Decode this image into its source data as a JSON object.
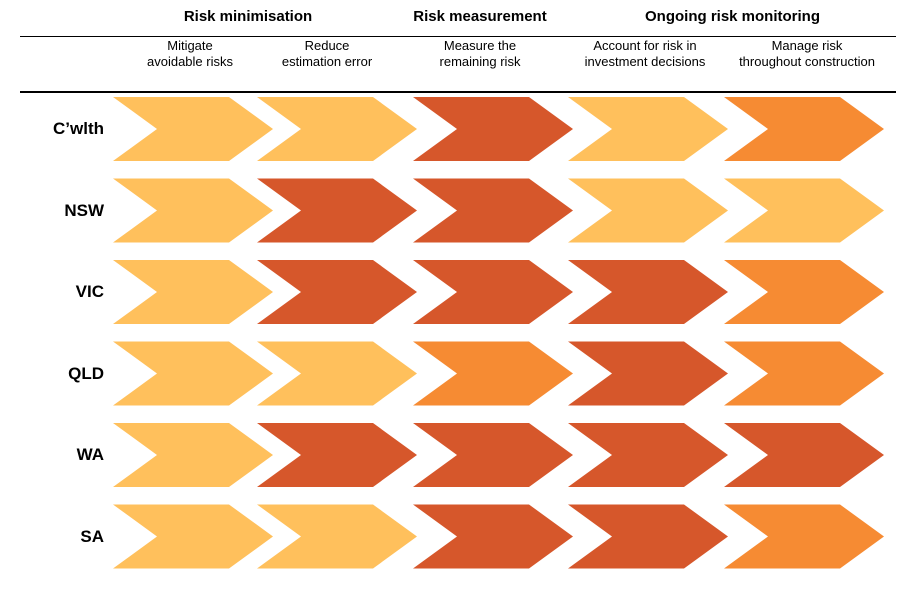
{
  "groups": [
    {
      "title": "Risk minimisation"
    },
    {
      "title": "Risk measurement"
    },
    {
      "title": "Ongoing risk monitoring"
    }
  ],
  "stages": [
    {
      "line1": "Mitigate",
      "line2": "avoidable risks"
    },
    {
      "line1": "Reduce",
      "line2": "estimation error"
    },
    {
      "line1": "Measure the",
      "line2": "remaining risk"
    },
    {
      "line1": "Account for risk in",
      "line2": "investment decisions"
    },
    {
      "line1": "Manage risk",
      "line2": "throughout construction"
    }
  ],
  "levels": {
    "light": "#FFC05C",
    "medium": "#F68B33",
    "dark": "#D6572B"
  },
  "rows": [
    {
      "label": "C’wlth",
      "cells": [
        "light",
        "light",
        "dark",
        "light",
        "medium"
      ]
    },
    {
      "label": "NSW",
      "cells": [
        "light",
        "dark",
        "dark",
        "light",
        "light"
      ]
    },
    {
      "label": "VIC",
      "cells": [
        "light",
        "dark",
        "dark",
        "dark",
        "medium"
      ]
    },
    {
      "label": "QLD",
      "cells": [
        "light",
        "light",
        "medium",
        "dark",
        "medium"
      ]
    },
    {
      "label": "WA",
      "cells": [
        "light",
        "dark",
        "dark",
        "dark",
        "dark"
      ]
    },
    {
      "label": "SA",
      "cells": [
        "light",
        "light",
        "dark",
        "dark",
        "medium"
      ]
    }
  ]
}
